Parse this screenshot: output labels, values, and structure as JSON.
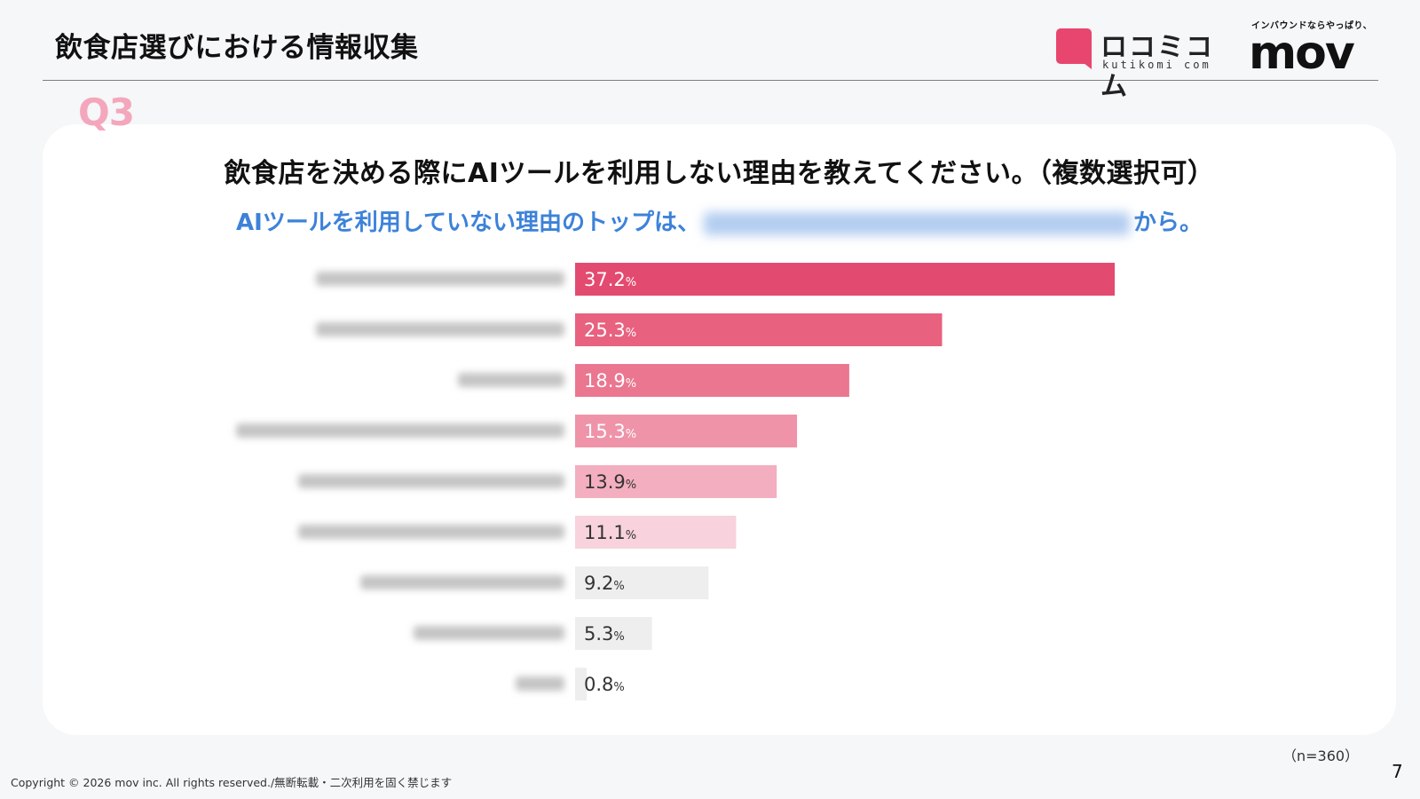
{
  "header": {
    "title": "飲食店選びにおける情報収集",
    "logo_kutikomi_kana": "ロコミコム",
    "logo_kutikomi_romaji": "kutikomi com",
    "logo_mov_tagline": "インバウンドならやっぱり、",
    "logo_mov_word": "mov"
  },
  "question_badge": "Q3",
  "question": "飲食店を決める際にAIツールを利用しない理由を教えてください。（複数選択可）",
  "subtitle": {
    "lead": "AIツールを利用していない理由のトップは、",
    "tail": "から。"
  },
  "chart_data": {
    "type": "bar",
    "orientation": "horizontal",
    "values": [
      37.2,
      25.3,
      18.9,
      15.3,
      13.9,
      11.1,
      9.2,
      5.3,
      0.8
    ],
    "value_suffix": "%",
    "colors": [
      "#e34a6f",
      "#e8617f",
      "#eb7690",
      "#ef93a9",
      "#f3aebf",
      "#f8d2dc",
      "#eeeeee",
      "#eeeeee",
      "#eeeeee"
    ],
    "category_labels_redacted": true,
    "xlim": [
      0,
      37.2
    ]
  },
  "n_note": "（n=360）",
  "page_number": "7",
  "copyright": "Copyright © 2026 mov inc. All rights reserved./無断転載・二次利用を固く禁じます"
}
